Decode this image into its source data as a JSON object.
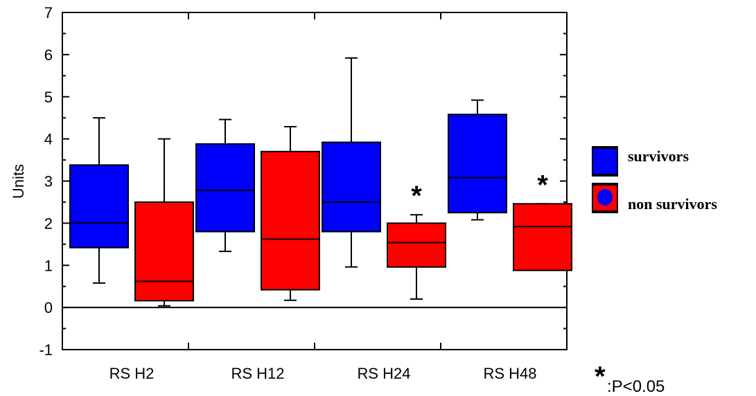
{
  "chart_data": {
    "type": "box",
    "ylabel": "Units",
    "xlabel": "",
    "ylim": [
      -1,
      7
    ],
    "yticks": [
      "-1",
      "0",
      "1",
      "2",
      "3",
      "4",
      "5",
      "6",
      "7"
    ],
    "categories": [
      "RS H2",
      "RS H12",
      "RS H24",
      "RS H48"
    ],
    "legend_position": "right",
    "series": [
      {
        "name": "survivors",
        "color": "#0000ff",
        "boxes": [
          {
            "whisker_low": 0.58,
            "q1": 1.42,
            "median": 2.0,
            "q3": 3.38,
            "whisker_high": 4.5
          },
          {
            "whisker_low": 1.33,
            "q1": 1.8,
            "median": 2.78,
            "q3": 3.88,
            "whisker_high": 4.46
          },
          {
            "whisker_low": 0.96,
            "q1": 1.8,
            "median": 2.5,
            "q3": 3.92,
            "whisker_high": 5.92
          },
          {
            "whisker_low": 2.08,
            "q1": 2.25,
            "median": 3.08,
            "q3": 4.58,
            "whisker_high": 4.92
          }
        ]
      },
      {
        "name": "non survivors",
        "color": "#ff0000",
        "boxes": [
          {
            "whisker_low": 0.04,
            "q1": 0.16,
            "median": 0.62,
            "q3": 2.5,
            "whisker_high": 4.0
          },
          {
            "whisker_low": 0.17,
            "q1": 0.42,
            "median": 1.62,
            "q3": 3.7,
            "whisker_high": 4.29
          },
          {
            "whisker_low": 0.2,
            "q1": 0.96,
            "median": 1.54,
            "q3": 2.0,
            "whisker_high": 2.2
          },
          {
            "whisker_low": 0.88,
            "q1": 0.88,
            "median": 1.92,
            "q3": 2.46,
            "whisker_high": 2.46
          }
        ]
      }
    ],
    "significance_markers": [
      {
        "category": "RS H24",
        "series": "non survivors",
        "symbol": "*"
      },
      {
        "category": "RS H48",
        "series": "non survivors",
        "symbol": "*"
      }
    ],
    "annotation": {
      "symbol": "*",
      "text": ":P<0.05"
    }
  }
}
